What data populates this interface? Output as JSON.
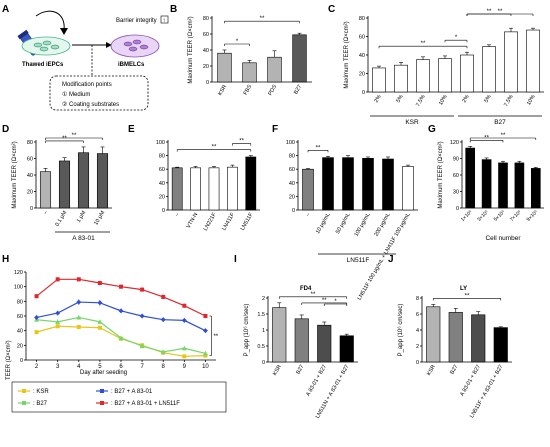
{
  "panels": {
    "A": {
      "letter": "A",
      "thawed_label": "Thawed iEPCs",
      "result_label": "iBMELCs",
      "barrier_label": "Barrier integrity",
      "barrier_icon": "up-arrow-icon",
      "box_title": "Modification points",
      "box_items": [
        "① Medium",
        "② Coating substrates"
      ]
    },
    "B": {
      "letter": "B",
      "ylabel": "Maximum TEER (Ω×cm²)"
    },
    "C": {
      "letter": "C",
      "ylabel": "Maximum TEER (Ω×cm²)",
      "group_labels": [
        "KSR",
        "B27"
      ]
    },
    "D": {
      "letter": "D",
      "ylabel": "Maximum TEER (Ω×cm²)",
      "group_label": "A 83-01"
    },
    "E": {
      "letter": "E"
    },
    "F": {
      "letter": "F",
      "group_label": "LN511F"
    },
    "G": {
      "letter": "G",
      "ylabel": "Maximum TEER (Ω×cm²)",
      "xlabel": "Cell number"
    },
    "H": {
      "letter": "H",
      "ylabel": "TEER (Ω×cm²)",
      "xlabel": "Day after seeding"
    },
    "I": {
      "letter": "I",
      "title": "FD4",
      "ylabel": "P_app (10⁶ cm/sec)"
    },
    "J": {
      "letter": "J",
      "title": "LY",
      "ylabel": "P_app (10⁶ cm/sec)"
    }
  },
  "chart_data": [
    {
      "id": "B",
      "type": "bar",
      "categories": [
        "KSR",
        "FBS",
        "PDS",
        "B27"
      ],
      "values": [
        36,
        24,
        31,
        59
      ],
      "errors": [
        4,
        3,
        8,
        2
      ],
      "colors": [
        "#b3b3b3",
        "#b3b3b3",
        "#b3b3b3",
        "#595959"
      ],
      "ylim": [
        0,
        80
      ],
      "yticks": [
        0,
        20,
        40,
        60,
        80
      ],
      "sig": [
        {
          "from": 0,
          "to": 1,
          "label": "*"
        },
        {
          "from": 0,
          "to": 3,
          "label": "**"
        }
      ]
    },
    {
      "id": "C",
      "type": "bar",
      "categories": [
        "2%",
        "5%",
        "7.5%",
        "10%",
        "2%",
        "5%",
        "7.5%",
        "10%"
      ],
      "values": [
        26,
        29,
        35,
        36,
        40,
        49,
        65,
        67
      ],
      "errors": [
        2,
        3,
        3,
        3,
        3,
        2,
        4,
        2
      ],
      "colors": [
        "#ffffff",
        "#ffffff",
        "#ffffff",
        "#ffffff",
        "#ffffff",
        "#ffffff",
        "#ffffff",
        "#ffffff"
      ],
      "ylim": [
        0,
        80
      ],
      "yticks": [
        0,
        20,
        40,
        60,
        80
      ],
      "sig": [
        {
          "from": 0,
          "to": 4,
          "label": "**"
        },
        {
          "from": 3,
          "to": 4,
          "label": "*"
        },
        {
          "from": 4,
          "to": 6,
          "label": "**"
        },
        {
          "from": 4,
          "to": 7,
          "label": "**"
        }
      ]
    },
    {
      "id": "D",
      "type": "bar",
      "categories": [
        "–",
        "0.1 μM",
        "1 μM",
        "10 μM"
      ],
      "values": [
        44,
        57,
        67,
        66
      ],
      "errors": [
        4,
        4,
        7,
        8
      ],
      "colors": [
        "#b3b3b3",
        "#595959",
        "#595959",
        "#595959"
      ],
      "ylim": [
        0,
        80
      ],
      "yticks": [
        0,
        20,
        40,
        60,
        80
      ],
      "sig": [
        {
          "from": 0,
          "to": 2,
          "label": "**"
        },
        {
          "from": 0,
          "to": 3,
          "label": "**"
        }
      ]
    },
    {
      "id": "E",
      "type": "bar",
      "categories": [
        "–",
        "VTN-N",
        "LN221F",
        "LN411F",
        "LN511F"
      ],
      "values": [
        62,
        62,
        62,
        63,
        78
      ],
      "errors": [
        1,
        2,
        2,
        3,
        2
      ],
      "colors": [
        "#808080",
        "#ffffff",
        "#ffffff",
        "#ffffff",
        "#000000"
      ],
      "ylim": [
        0,
        100
      ],
      "yticks": [
        0,
        20,
        40,
        60,
        80,
        100
      ],
      "sig": [
        {
          "from": 0,
          "to": 4,
          "label": "**"
        },
        {
          "from": 3,
          "to": 4,
          "label": "**"
        }
      ]
    },
    {
      "id": "F",
      "type": "bar",
      "categories": [
        "–",
        "10 μg/mL",
        "50 μg/mL",
        "100 μg/mL",
        "200 μg/mL",
        "LN511F 100 μg/mL + LN411F 100 μg/mL"
      ],
      "values": [
        60,
        77,
        77,
        76,
        75,
        64
      ],
      "errors": [
        1,
        2,
        3,
        2,
        3,
        2
      ],
      "colors": [
        "#808080",
        "#000000",
        "#000000",
        "#000000",
        "#000000",
        "#ffffff"
      ],
      "ylim": [
        0,
        100
      ],
      "yticks": [
        0,
        20,
        40,
        60,
        80,
        100
      ],
      "sig": [
        {
          "from": 0,
          "to": 1,
          "label": "**"
        }
      ]
    },
    {
      "id": "G",
      "type": "bar",
      "categories": [
        "1×10⁵",
        "3×10⁵",
        "5×10⁵",
        "7×10⁵",
        "9×10⁵"
      ],
      "values": [
        109,
        88,
        82,
        82,
        72
      ],
      "errors": [
        3,
        3,
        3,
        3,
        2
      ],
      "colors": [
        "#000000",
        "#000000",
        "#000000",
        "#000000",
        "#000000"
      ],
      "ylim": [
        0,
        120
      ],
      "yticks": [
        0,
        30,
        60,
        90,
        120
      ],
      "sig": [
        {
          "from": 0,
          "to": 2,
          "label": "**"
        },
        {
          "from": 0,
          "to": 4,
          "label": "**"
        }
      ]
    },
    {
      "id": "H",
      "type": "line",
      "x": [
        2,
        3,
        4,
        5,
        6,
        7,
        8,
        9,
        10
      ],
      "xlim": [
        1.5,
        10.5
      ],
      "ylim": [
        0,
        120
      ],
      "yticks": [
        0,
        20,
        40,
        60,
        80,
        100,
        120
      ],
      "series": [
        {
          "name": ": KSR",
          "color": "#e6c619",
          "marker": "square",
          "values": [
            38,
            46,
            45,
            44,
            29,
            20,
            10,
            5,
            6
          ],
          "errors": [
            3,
            3,
            3,
            3,
            3,
            3,
            3,
            2,
            2
          ]
        },
        {
          "name": ": B27",
          "color": "#77d56a",
          "marker": "triangle",
          "values": [
            55,
            52,
            58,
            52,
            30,
            19,
            11,
            16,
            9
          ],
          "errors": [
            3,
            3,
            3,
            3,
            3,
            3,
            3,
            3,
            2
          ]
        },
        {
          "name": ": B27 + A 83-01",
          "color": "#2f4fd6",
          "marker": "diamond",
          "values": [
            58,
            64,
            79,
            78,
            67,
            60,
            55,
            54,
            40
          ],
          "errors": [
            3,
            3,
            4,
            4,
            3,
            3,
            3,
            3,
            3
          ]
        },
        {
          "name": ": B27 + A 83-01 + LN511F",
          "color": "#e0282c",
          "marker": "square",
          "values": [
            87,
            110,
            110,
            105,
            100,
            96,
            86,
            74,
            60
          ],
          "errors": [
            3,
            3,
            3,
            3,
            3,
            3,
            3,
            3,
            3
          ]
        }
      ],
      "annotation": "**"
    },
    {
      "id": "I",
      "type": "bar",
      "categories": [
        "KSR",
        "B27",
        "A 83-01 + B27",
        "LN511N + A 83-01 + B27"
      ],
      "values": [
        1.7,
        1.35,
        1.15,
        0.82
      ],
      "errors": [
        0.15,
        0.12,
        0.1,
        0.05
      ],
      "colors": [
        "#b3b3b3",
        "#808080",
        "#4d4d4d",
        "#000000"
      ],
      "ylim": [
        0,
        2.0
      ],
      "yticks": [
        0,
        0.5,
        1.0,
        1.5,
        2.0
      ],
      "sig": [
        {
          "from": 0,
          "to": 3,
          "label": "**"
        },
        {
          "from": 1,
          "to": 3,
          "label": "**"
        },
        {
          "from": 2,
          "to": 3,
          "label": "*"
        }
      ]
    },
    {
      "id": "J",
      "type": "bar",
      "categories": [
        "KSR",
        "B27",
        "A 83-01 + B27",
        "LN511F + A 83-01 + B27"
      ],
      "values": [
        6.9,
        6.2,
        5.9,
        4.3
      ],
      "errors": [
        0.3,
        0.5,
        0.4,
        0.1
      ],
      "colors": [
        "#b3b3b3",
        "#808080",
        "#4d4d4d",
        "#000000"
      ],
      "ylim": [
        0,
        8
      ],
      "yticks": [
        0,
        2,
        4,
        6,
        8
      ],
      "sig": [
        {
          "from": 0,
          "to": 3,
          "label": "**"
        }
      ]
    }
  ]
}
